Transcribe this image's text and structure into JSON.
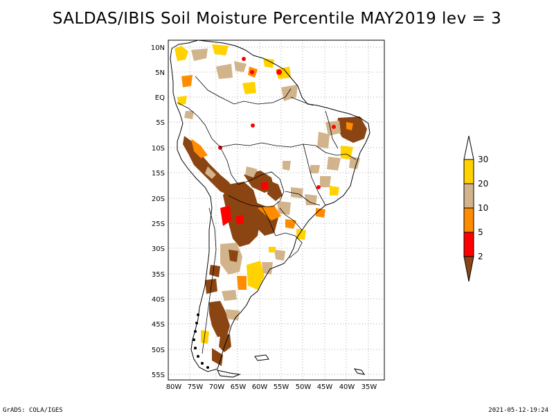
{
  "title": "SALDAS/IBIS Soil Moisture Percentile MAY2019 lev = 3",
  "lat_labels": [
    "10N",
    "5N",
    "EQ",
    "5S",
    "10S",
    "15S",
    "20S",
    "25S",
    "30S",
    "35S",
    "40S",
    "45S",
    "50S",
    "55S"
  ],
  "lon_labels": [
    "80W",
    "75W",
    "70W",
    "65W",
    "60W",
    "55W",
    "50W",
    "45W",
    "40W",
    "35W"
  ],
  "colorbar": {
    "labels": [
      "30",
      "20",
      "10",
      "5",
      "2"
    ],
    "colors": {
      "above_30": "#ffffff",
      "20_30": "#ffd200",
      "10_20": "#d2b48c",
      "5_10": "#ff8c00",
      "2_5": "#ff0000",
      "below_2": "#8b4513"
    }
  },
  "footer_left": "GrADS: COLA/IGES",
  "footer_right": "2021-05-12-19:24"
}
